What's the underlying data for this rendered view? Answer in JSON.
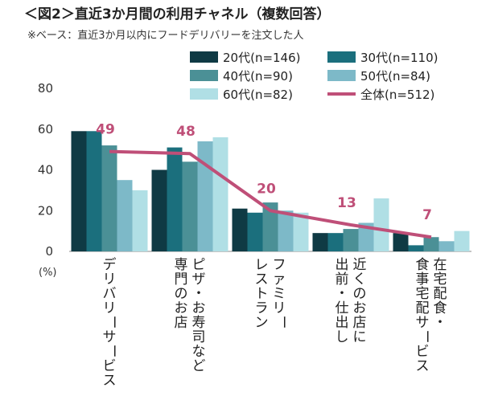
{
  "chart_data": {
    "type": "bar",
    "title": "＜図2＞直近3か月間の利用チャネル（複数回答）",
    "subtitle": "※ベース：直近3か月以内にフードデリバリーを注文した人",
    "unit_label": "(%)",
    "ylim": [
      0,
      80
    ],
    "yticks": [
      0,
      20,
      40,
      60,
      80
    ],
    "categories": [
      [
        "デリバリーサービス"
      ],
      [
        "ピザ・お寿司など",
        "専門のお店"
      ],
      [
        "ファミリー",
        "レストラン"
      ],
      [
        "近くのお店に",
        "出前・仕出し"
      ],
      [
        "在宅配食・",
        "食事宅配サービス"
      ]
    ],
    "series": [
      {
        "name": "20代(n=146)",
        "color": "#0f3a44",
        "values": [
          59,
          40,
          21,
          9,
          9
        ]
      },
      {
        "name": "30代(n=110)",
        "color": "#1b6f7d",
        "values": [
          59,
          51,
          19,
          9,
          3
        ]
      },
      {
        "name": "40代(n=90)",
        "color": "#4b9096",
        "values": [
          52,
          44,
          24,
          11,
          7
        ]
      },
      {
        "name": "50代(n=84)",
        "color": "#7db9c8",
        "values": [
          35,
          54,
          20,
          14,
          5
        ]
      },
      {
        "name": "60代(n=82)",
        "color": "#b0dfe5",
        "values": [
          30,
          56,
          19,
          26,
          10
        ]
      }
    ],
    "total": {
      "name": "全体(n=512)",
      "color": "#bf4f78",
      "values": [
        49,
        48,
        20,
        13,
        7
      ]
    }
  }
}
